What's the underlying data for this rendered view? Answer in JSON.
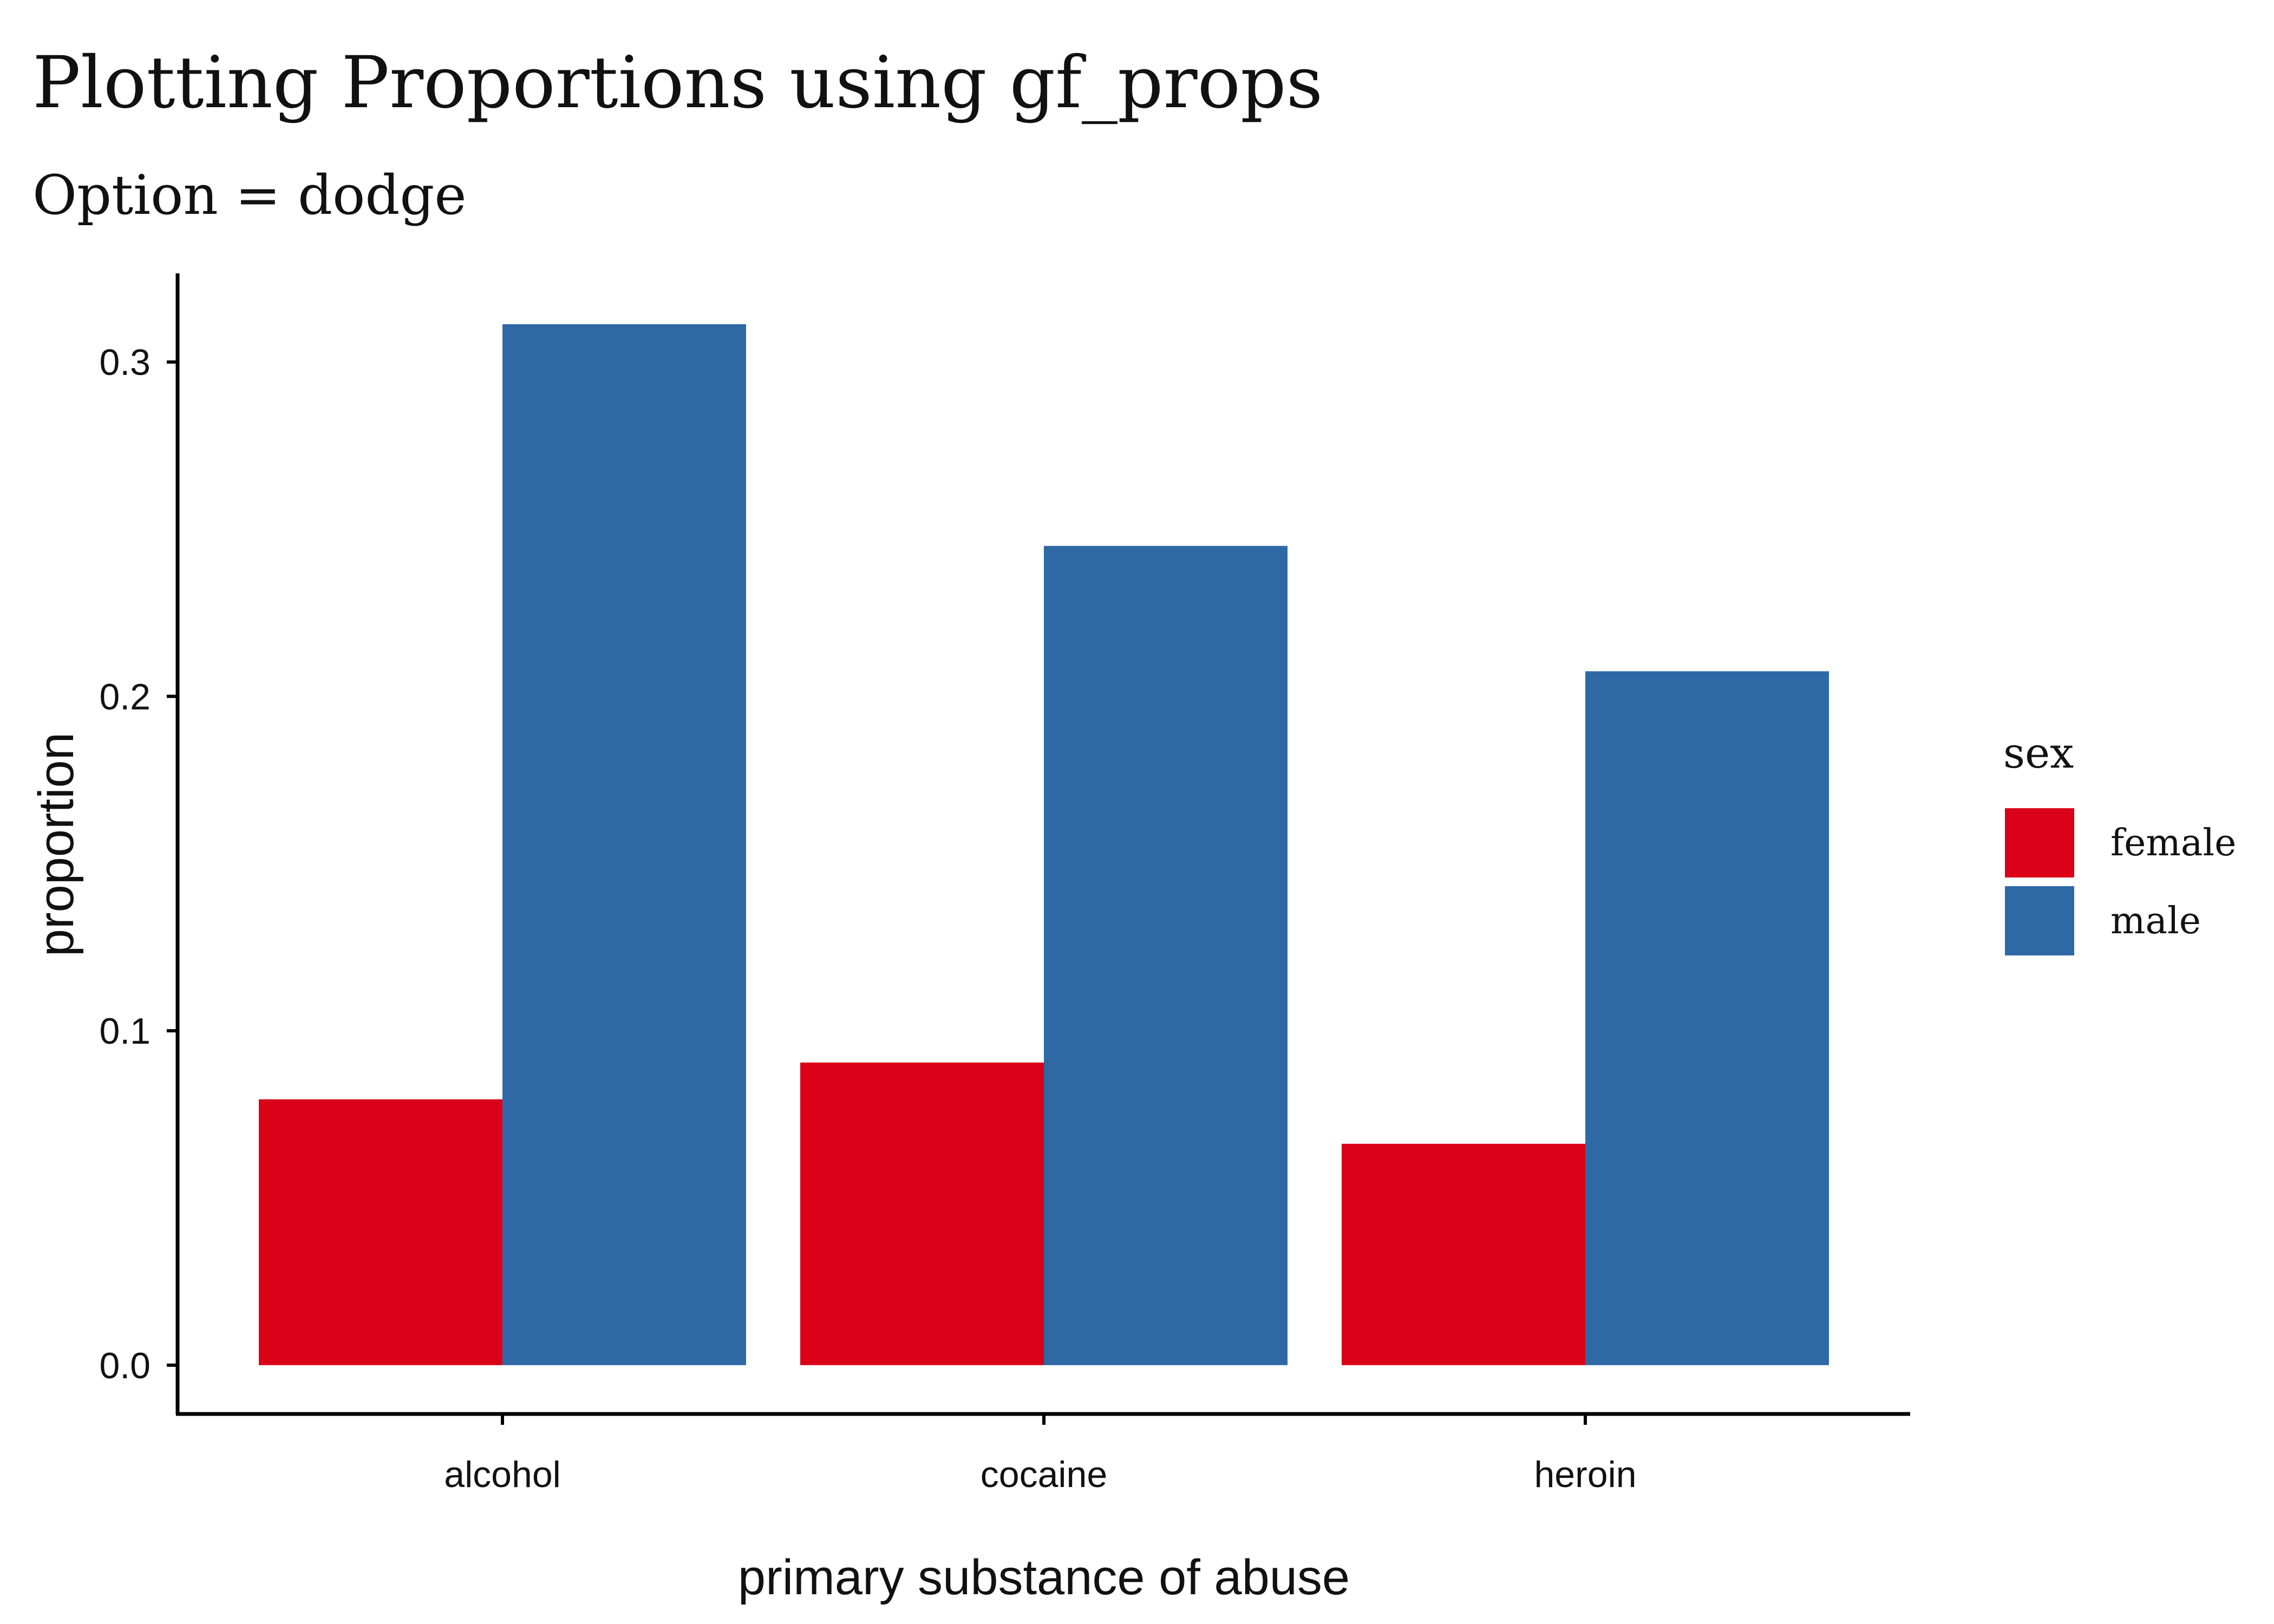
{
  "colors": {
    "female": "#DA0018",
    "male": "#2E69A6",
    "axis": "#000000",
    "background": "#FFFFFF"
  },
  "chart_data": {
    "type": "bar",
    "barmode": "dodge",
    "title": "Plotting Proportions using gf_props",
    "subtitle": "Option = dodge",
    "xlabel": "primary substance of abuse",
    "ylabel": "proportion",
    "categories": [
      "alcohol",
      "cocaine",
      "heroin"
    ],
    "series": [
      {
        "name": "female",
        "color": "#DA0018",
        "values": [
          0.0795,
          0.0905,
          0.0662
        ]
      },
      {
        "name": "male",
        "color": "#2E69A6",
        "values": [
          0.3113,
          0.245,
          0.2075
        ]
      }
    ],
    "yticks": [
      0.0,
      0.1,
      0.2,
      0.3
    ],
    "ytick_labels": [
      "0.0",
      "0.1",
      "0.2",
      "0.3"
    ],
    "ylim": [
      -0.0146,
      0.3265
    ],
    "grid": false,
    "legend": {
      "title": "sex",
      "position": "right",
      "entries": [
        "female",
        "male"
      ]
    }
  }
}
